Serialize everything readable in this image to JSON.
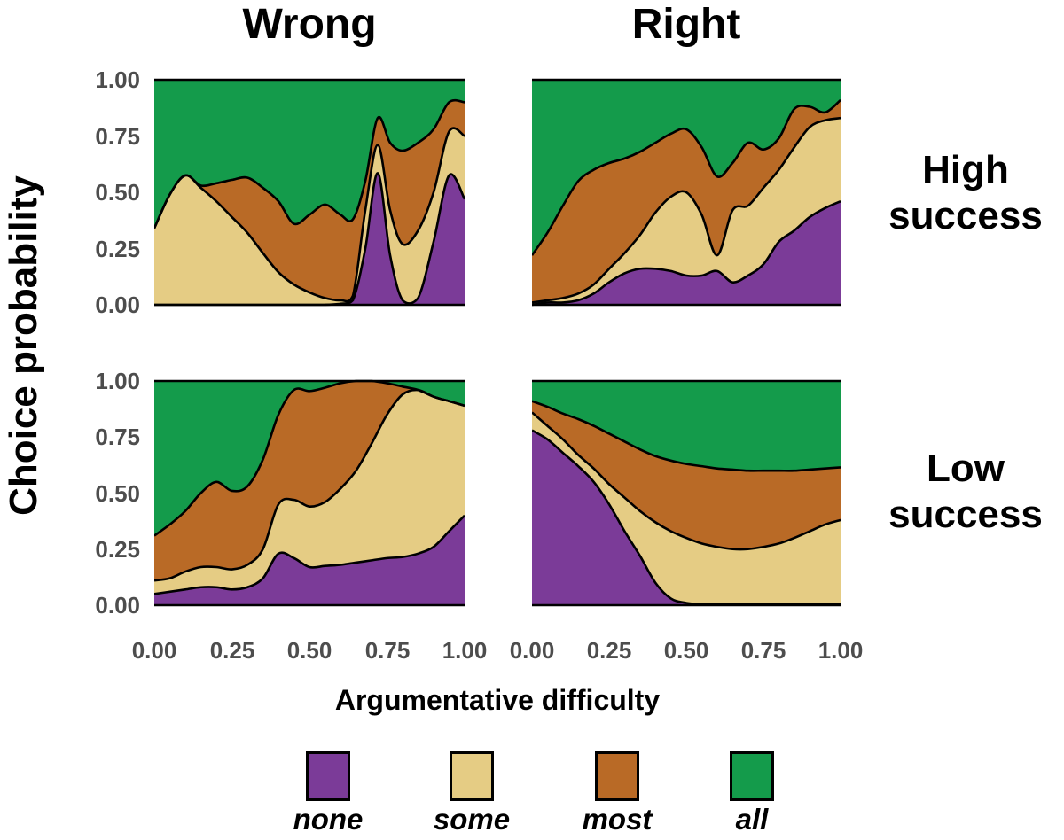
{
  "figure": {
    "column_titles": [
      "Wrong",
      "Right"
    ],
    "row_labels": [
      {
        "line1": "High",
        "line2": "success"
      },
      {
        "line1": "Low",
        "line2": "success"
      }
    ],
    "y_axis": {
      "title": "Choice probability",
      "tick_labels": [
        "1.00",
        "0.75",
        "0.50",
        "0.25",
        "0.00"
      ]
    },
    "x_axis": {
      "title": "Argumentative difficulty",
      "tick_labels": [
        "0.00",
        "0.25",
        "0.50",
        "0.75",
        "1.00"
      ]
    },
    "legend": [
      {
        "label": "none",
        "color": "#7B3B98"
      },
      {
        "label": "some",
        "color": "#E5CC84"
      },
      {
        "label": "most",
        "color": "#B96A26"
      },
      {
        "label": "all",
        "color": "#149B4B"
      }
    ]
  },
  "chart_data": {
    "type": "area",
    "subtype": "stacked-smoothed-proportions",
    "title": "",
    "xlabel": "Argumentative difficulty",
    "ylabel": "Choice probability",
    "xlim": [
      0,
      1
    ],
    "ylim": [
      0,
      1
    ],
    "x_ticks": [
      0,
      0.25,
      0.5,
      0.75,
      1
    ],
    "y_ticks": [
      0,
      0.25,
      0.5,
      0.75,
      1
    ],
    "grid": false,
    "legend_position": "bottom",
    "categories": [
      "none",
      "some",
      "most",
      "all"
    ],
    "colors": {
      "none": "#7B3B98",
      "some": "#E5CC84",
      "most": "#B96A26",
      "all": "#149B4B",
      "outline": "#000000"
    },
    "facets": {
      "columns": [
        "Wrong",
        "Right"
      ],
      "rows": [
        "High success",
        "Low success"
      ]
    },
    "panels": [
      {
        "column": "Wrong",
        "row": "High success",
        "x": [
          0,
          0.05,
          0.1,
          0.15,
          0.2,
          0.25,
          0.3,
          0.35,
          0.4,
          0.45,
          0.5,
          0.55,
          0.6,
          0.64,
          0.68,
          0.72,
          0.76,
          0.8,
          0.85,
          0.9,
          0.95,
          1.0
        ],
        "cumulative": {
          "none": [
            0,
            0,
            0,
            0,
            0,
            0,
            0,
            0,
            0,
            0,
            0,
            0,
            0.005,
            0.02,
            0.25,
            0.585,
            0.22,
            0.02,
            0.03,
            0.28,
            0.575,
            0.47
          ],
          "some": [
            0.34,
            0.49,
            0.575,
            0.52,
            0.46,
            0.39,
            0.32,
            0.23,
            0.145,
            0.09,
            0.055,
            0.03,
            0.02,
            0.04,
            0.42,
            0.71,
            0.42,
            0.27,
            0.33,
            0.5,
            0.77,
            0.75
          ],
          "most": [
            0.34,
            0.49,
            0.575,
            0.53,
            0.54,
            0.555,
            0.565,
            0.52,
            0.46,
            0.36,
            0.4,
            0.445,
            0.4,
            0.38,
            0.55,
            0.83,
            0.72,
            0.685,
            0.72,
            0.78,
            0.9,
            0.9
          ]
        }
      },
      {
        "column": "Right",
        "row": "High success",
        "x": [
          0,
          0.05,
          0.1,
          0.15,
          0.2,
          0.25,
          0.3,
          0.35,
          0.4,
          0.45,
          0.5,
          0.55,
          0.6,
          0.65,
          0.7,
          0.75,
          0.8,
          0.85,
          0.9,
          0.95,
          1.0
        ],
        "cumulative": {
          "none": [
            0,
            0.01,
            0.01,
            0.02,
            0.05,
            0.1,
            0.14,
            0.16,
            0.16,
            0.15,
            0.13,
            0.13,
            0.15,
            0.1,
            0.13,
            0.18,
            0.28,
            0.33,
            0.39,
            0.43,
            0.46
          ],
          "some": [
            0.01,
            0.02,
            0.03,
            0.05,
            0.09,
            0.16,
            0.23,
            0.31,
            0.41,
            0.48,
            0.5,
            0.4,
            0.22,
            0.42,
            0.44,
            0.52,
            0.6,
            0.7,
            0.79,
            0.82,
            0.83
          ],
          "most": [
            0.22,
            0.32,
            0.44,
            0.55,
            0.6,
            0.63,
            0.65,
            0.68,
            0.72,
            0.76,
            0.78,
            0.7,
            0.57,
            0.63,
            0.72,
            0.69,
            0.74,
            0.87,
            0.88,
            0.855,
            0.91
          ]
        }
      },
      {
        "column": "Wrong",
        "row": "Low success",
        "x": [
          0,
          0.05,
          0.1,
          0.15,
          0.2,
          0.25,
          0.3,
          0.35,
          0.4,
          0.45,
          0.5,
          0.55,
          0.6,
          0.65,
          0.7,
          0.75,
          0.8,
          0.85,
          0.9,
          0.95,
          1.0
        ],
        "cumulative": {
          "none": [
            0.05,
            0.06,
            0.07,
            0.08,
            0.08,
            0.07,
            0.08,
            0.12,
            0.23,
            0.21,
            0.17,
            0.175,
            0.18,
            0.19,
            0.2,
            0.21,
            0.215,
            0.23,
            0.26,
            0.33,
            0.4
          ],
          "some": [
            0.11,
            0.12,
            0.15,
            0.17,
            0.17,
            0.16,
            0.18,
            0.25,
            0.45,
            0.47,
            0.44,
            0.46,
            0.52,
            0.6,
            0.72,
            0.85,
            0.94,
            0.96,
            0.93,
            0.91,
            0.89
          ],
          "most": [
            0.31,
            0.36,
            0.42,
            0.5,
            0.55,
            0.51,
            0.53,
            0.65,
            0.85,
            0.96,
            0.955,
            0.97,
            0.99,
            1.0,
            1.0,
            0.99,
            0.975,
            0.96,
            0.93,
            0.91,
            0.89
          ]
        }
      },
      {
        "column": "Right",
        "row": "Low success",
        "x": [
          0,
          0.05,
          0.1,
          0.15,
          0.2,
          0.25,
          0.3,
          0.35,
          0.4,
          0.45,
          0.5,
          0.55,
          0.6,
          0.65,
          0.7,
          0.75,
          0.8,
          0.85,
          0.9,
          0.95,
          1.0
        ],
        "cumulative": {
          "none": [
            0.78,
            0.74,
            0.68,
            0.62,
            0.55,
            0.45,
            0.33,
            0.22,
            0.1,
            0.03,
            0.01,
            0.005,
            0.005,
            0.005,
            0.005,
            0.005,
            0.005,
            0.005,
            0.005,
            0.005,
            0.005
          ],
          "some": [
            0.86,
            0.8,
            0.74,
            0.67,
            0.61,
            0.54,
            0.48,
            0.42,
            0.37,
            0.33,
            0.3,
            0.275,
            0.26,
            0.25,
            0.25,
            0.26,
            0.275,
            0.3,
            0.33,
            0.36,
            0.38
          ],
          "most": [
            0.91,
            0.885,
            0.855,
            0.83,
            0.8,
            0.765,
            0.73,
            0.695,
            0.665,
            0.645,
            0.63,
            0.62,
            0.61,
            0.605,
            0.6,
            0.6,
            0.6,
            0.6,
            0.605,
            0.61,
            0.615
          ]
        }
      }
    ]
  }
}
